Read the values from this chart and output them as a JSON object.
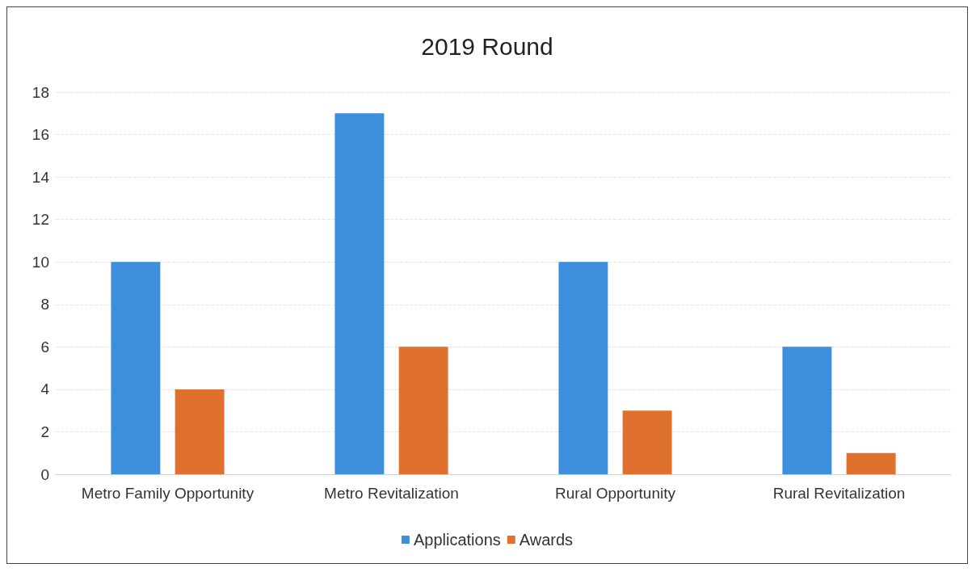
{
  "chart_data": {
    "type": "bar",
    "title": "2019 Round",
    "categories": [
      "Metro Family Opportunity",
      "Metro Revitalization",
      "Rural Opportunity",
      "Rural Revitalization"
    ],
    "series": [
      {
        "name": "Applications",
        "color": "#3e8ede",
        "values": [
          10,
          17,
          10,
          6
        ]
      },
      {
        "name": "Awards",
        "color": "#e0702e",
        "values": [
          4,
          6,
          3,
          1
        ]
      }
    ],
    "ylim": [
      0,
      18
    ],
    "yticks": [
      0,
      2,
      4,
      6,
      8,
      10,
      12,
      14,
      16,
      18
    ],
    "grid": "y",
    "legend": "bottom"
  }
}
